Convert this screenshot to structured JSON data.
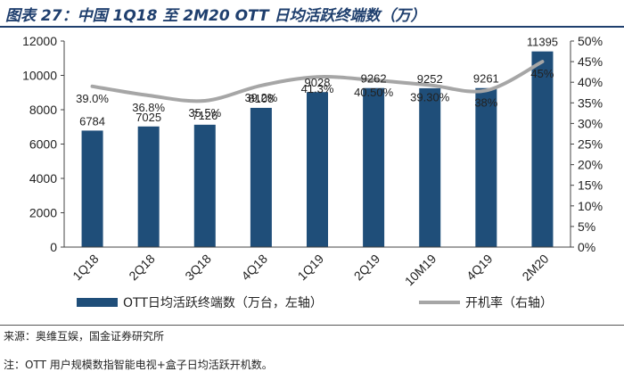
{
  "title": "图表 27：中国 1Q18 至 2M20 OTT 日均活跃终端数（万）",
  "source": "来源：奥维互娱，国金证券研究所",
  "note": "注：OTT 用户规模数指智能电视+盒子日均活跃开机数。",
  "chart_data": {
    "type": "bar+line",
    "categories": [
      "1Q18",
      "2Q18",
      "3Q18",
      "4Q18",
      "1Q19",
      "2Q19",
      "10M19",
      "4Q19",
      "2M20"
    ],
    "series": [
      {
        "name": "OTT日均活跃终端数（万台，左轴）",
        "type": "bar",
        "axis": "left",
        "values": [
          6784,
          7025,
          7126,
          8108,
          9028,
          9262,
          9252,
          9261,
          11395
        ],
        "labels": [
          "6784",
          "7025",
          "7126",
          "8108",
          "9028",
          "9262",
          "9252",
          "9261",
          "11395"
        ],
        "color": "#1f4e79"
      },
      {
        "name": "开机率（右轴）",
        "type": "line",
        "axis": "right",
        "values": [
          39.0,
          36.8,
          35.5,
          39.2,
          41.3,
          40.5,
          39.3,
          38.0,
          45.0
        ],
        "labels": [
          "39.0%",
          "36.8%",
          "35.5%",
          "39.2%",
          "41.3%",
          "40.50%",
          "39.30%",
          "38%",
          "45%"
        ],
        "color": "#a6a6a6"
      }
    ],
    "y_left": {
      "min": 0,
      "max": 12000,
      "ticks": [
        "0",
        "2000",
        "4000",
        "6000",
        "8000",
        "10000",
        "12000"
      ]
    },
    "y_right": {
      "min": 0,
      "max": 50,
      "ticks": [
        "0%",
        "5%",
        "10%",
        "15%",
        "20%",
        "25%",
        "30%",
        "35%",
        "40%",
        "45%",
        "50%"
      ]
    },
    "legend_position": "bottom"
  }
}
